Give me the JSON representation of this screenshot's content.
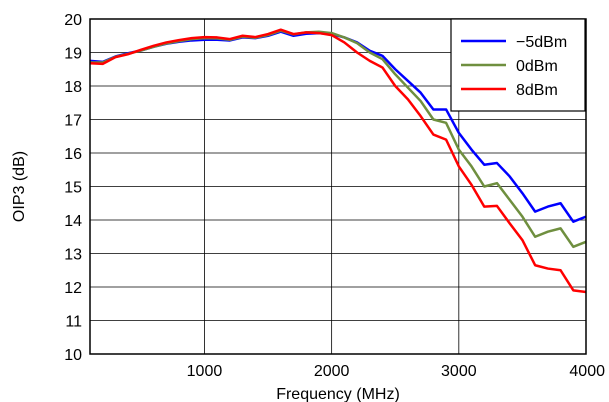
{
  "chart_data": {
    "type": "line",
    "xlabel": "Frequency (MHz)",
    "ylabel": "OIP3 (dB)",
    "xlim": [
      100,
      4000
    ],
    "ylim": [
      10,
      20
    ],
    "x_ticks": [
      1000,
      2000,
      3000,
      4000
    ],
    "y_ticks": [
      10,
      11,
      12,
      13,
      14,
      15,
      16,
      17,
      18,
      19,
      20
    ],
    "x_tick_labels": [
      "1000",
      "2000",
      "3000",
      "4000"
    ],
    "y_tick_labels": [
      "10",
      "11",
      "12",
      "13",
      "14",
      "15",
      "16",
      "17",
      "18",
      "19",
      "20"
    ],
    "grid": true,
    "legend_position": "top-right",
    "series": [
      {
        "name": "−5dBm",
        "color": "#0000ff",
        "x": [
          100,
          200,
          300,
          400,
          500,
          600,
          700,
          800,
          900,
          1000,
          1100,
          1200,
          1300,
          1400,
          1500,
          1600,
          1700,
          1800,
          1900,
          2000,
          2100,
          2200,
          2300,
          2400,
          2500,
          2600,
          2700,
          2800,
          2900,
          3000,
          3100,
          3200,
          3300,
          3400,
          3500,
          3600,
          3700,
          3800,
          3900,
          4000
        ],
        "y": [
          18.75,
          18.72,
          18.88,
          18.98,
          19.06,
          19.17,
          19.26,
          19.32,
          19.36,
          19.38,
          19.38,
          19.36,
          19.45,
          19.43,
          19.5,
          19.62,
          19.5,
          19.56,
          19.58,
          19.55,
          19.45,
          19.3,
          19.05,
          18.9,
          18.5,
          18.15,
          17.8,
          17.3,
          17.3,
          16.6,
          16.1,
          15.65,
          15.7,
          15.3,
          14.8,
          14.25,
          14.4,
          14.5,
          13.95,
          14.1
        ]
      },
      {
        "name": "0dBm",
        "color": "#6f8f3f",
        "x": [
          100,
          200,
          300,
          400,
          500,
          600,
          700,
          800,
          900,
          1000,
          1100,
          1200,
          1300,
          1400,
          1500,
          1600,
          1700,
          1800,
          1900,
          2000,
          2100,
          2200,
          2300,
          2400,
          2500,
          2600,
          2700,
          2800,
          2900,
          3000,
          3100,
          3200,
          3300,
          3400,
          3500,
          3600,
          3700,
          3800,
          3900,
          4000
        ],
        "y": [
          18.7,
          18.7,
          18.87,
          18.96,
          19.06,
          19.17,
          19.27,
          19.34,
          19.4,
          19.43,
          19.42,
          19.38,
          19.47,
          19.44,
          19.52,
          19.65,
          19.54,
          19.6,
          19.62,
          19.58,
          19.45,
          19.28,
          19.0,
          18.8,
          18.35,
          17.95,
          17.55,
          17.0,
          16.9,
          16.1,
          15.6,
          15.0,
          15.1,
          14.6,
          14.1,
          13.5,
          13.65,
          13.75,
          13.2,
          13.35
        ]
      },
      {
        "name": "8dBm",
        "color": "#ff0000",
        "x": [
          100,
          200,
          300,
          400,
          500,
          600,
          700,
          800,
          900,
          1000,
          1100,
          1200,
          1300,
          1400,
          1500,
          1600,
          1700,
          1800,
          1900,
          2000,
          2100,
          2200,
          2300,
          2400,
          2500,
          2600,
          2700,
          2800,
          2900,
          3000,
          3100,
          3200,
          3300,
          3400,
          3500,
          3600,
          3700,
          3800,
          3900,
          4000
        ],
        "y": [
          18.68,
          18.66,
          18.86,
          18.95,
          19.08,
          19.2,
          19.3,
          19.37,
          19.43,
          19.46,
          19.45,
          19.4,
          19.5,
          19.46,
          19.55,
          19.68,
          19.55,
          19.6,
          19.58,
          19.52,
          19.3,
          19.0,
          18.75,
          18.55,
          18.0,
          17.6,
          17.1,
          16.55,
          16.4,
          15.6,
          15.05,
          14.4,
          14.42,
          13.9,
          13.4,
          12.65,
          12.55,
          12.5,
          11.9,
          11.85
        ]
      }
    ]
  }
}
